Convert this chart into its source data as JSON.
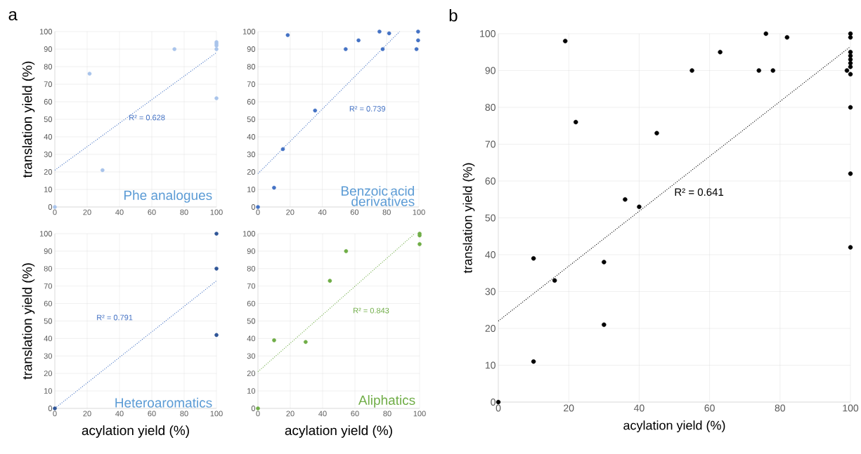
{
  "chart_data": [
    {
      "type": "scatter",
      "ylabel": "translation yield (%)",
      "annotations": [
        "a",
        "R² = 0.628",
        "Phe analogues"
      ],
      "xlim": [
        0,
        100
      ],
      "ylim": [
        0,
        100
      ],
      "xticks": [
        0,
        20,
        40,
        60,
        80,
        100
      ],
      "yticks": [
        0,
        10,
        20,
        30,
        40,
        50,
        60,
        70,
        80,
        90,
        100
      ],
      "grid": true,
      "series": [
        {
          "marker": "circle",
          "color": "#a9c4eb",
          "x": [
            0,
            21.5,
            29.5,
            74,
            100,
            100,
            100,
            100,
            100
          ],
          "values": [
            0,
            76,
            21,
            90,
            94,
            93,
            92,
            90,
            62
          ]
        },
        {
          "type": "line",
          "line_style": "dotted",
          "color": "#4472c4",
          "x": [
            0,
            100
          ],
          "values": [
            21,
            88
          ]
        }
      ]
    },
    {
      "type": "scatter",
      "annotations": [
        "R² = 0.739",
        "Benzoic acid derivatives"
      ],
      "xlim": [
        0,
        100
      ],
      "ylim": [
        0,
        100
      ],
      "xticks": [
        0,
        20,
        40,
        60,
        80,
        100
      ],
      "yticks": [
        0,
        10,
        20,
        30,
        40,
        50,
        60,
        70,
        80,
        90,
        100
      ],
      "grid": true,
      "series": [
        {
          "marker": "circle",
          "color": "#4472c4",
          "x": [
            0,
            10,
            15.5,
            18.5,
            35.5,
            54.5,
            62.5,
            75.5,
            77.5,
            81.5,
            98.5,
            99.5,
            99.5
          ],
          "values": [
            0,
            11,
            33,
            98,
            55,
            90,
            95,
            100,
            90,
            99,
            90,
            95,
            100
          ]
        },
        {
          "type": "line",
          "line_style": "dotted",
          "color": "#4472c4",
          "x": [
            0,
            88
          ],
          "values": [
            19,
            100
          ]
        }
      ]
    },
    {
      "type": "scatter",
      "xlabel": "acylation yield (%)",
      "ylabel": "translation yield (%)",
      "annotations": [
        "R² = 0.791",
        "Heteroaromatics"
      ],
      "xlim": [
        0,
        100
      ],
      "ylim": [
        0,
        100
      ],
      "xticks": [
        0,
        20,
        40,
        60,
        80,
        100
      ],
      "yticks": [
        0,
        10,
        20,
        30,
        40,
        50,
        60,
        70,
        80,
        90,
        100
      ],
      "grid": true,
      "series": [
        {
          "marker": "circle",
          "color": "#2f5597",
          "x": [
            0,
            100,
            100,
            100
          ],
          "values": [
            0,
            100,
            80,
            42
          ]
        },
        {
          "type": "line",
          "line_style": "dotted",
          "color": "#4472c4",
          "x": [
            0,
            100
          ],
          "values": [
            0,
            73
          ]
        }
      ]
    },
    {
      "type": "scatter",
      "xlabel": "acylation yield (%)",
      "annotations": [
        "R² = 0.843",
        "Aliphatics"
      ],
      "xlim": [
        0,
        100
      ],
      "ylim": [
        0,
        100
      ],
      "xticks": [
        0,
        20,
        40,
        60,
        80,
        100
      ],
      "yticks": [
        0,
        10,
        20,
        30,
        40,
        50,
        60,
        70,
        80,
        90,
        100
      ],
      "grid": true,
      "series": [
        {
          "marker": "circle",
          "color": "#70ad47",
          "x": [
            0,
            10,
            29.5,
            44.5,
            54.5,
            100,
            100,
            100
          ],
          "values": [
            0,
            39,
            38,
            73,
            90,
            100,
            99,
            94
          ]
        },
        {
          "type": "line",
          "line_style": "dotted",
          "color": "#70ad47",
          "x": [
            0,
            97
          ],
          "values": [
            21,
            100
          ]
        }
      ]
    },
    {
      "type": "scatter",
      "xlabel": "acylation yield (%)",
      "ylabel": "translation yield (%)",
      "annotations": [
        "b",
        "R² = 0.641"
      ],
      "xlim": [
        0,
        100
      ],
      "ylim": [
        0,
        100
      ],
      "xticks": [
        0,
        20,
        40,
        60,
        80,
        100
      ],
      "yticks": [
        0,
        10,
        20,
        30,
        40,
        50,
        60,
        70,
        80,
        90,
        100
      ],
      "grid": true,
      "series": [
        {
          "marker": "circle",
          "color": "#000000",
          "x": [
            0,
            10,
            10,
            16,
            19,
            22,
            30,
            30,
            36,
            40,
            45,
            55,
            63,
            74,
            76,
            78,
            82,
            99,
            100,
            100,
            100,
            100,
            100,
            100,
            100,
            100,
            100,
            100,
            100
          ],
          "values": [
            0,
            11,
            39,
            33,
            98,
            76,
            38,
            21,
            55,
            53,
            73,
            90,
            95,
            90,
            100,
            90,
            99,
            90,
            100,
            99,
            95,
            94,
            93,
            92,
            91,
            89,
            80,
            62,
            42
          ]
        },
        {
          "type": "line",
          "line_style": "dotted",
          "color": "#000000",
          "x": [
            0,
            100
          ],
          "values": [
            22,
            96.5
          ]
        }
      ]
    }
  ]
}
